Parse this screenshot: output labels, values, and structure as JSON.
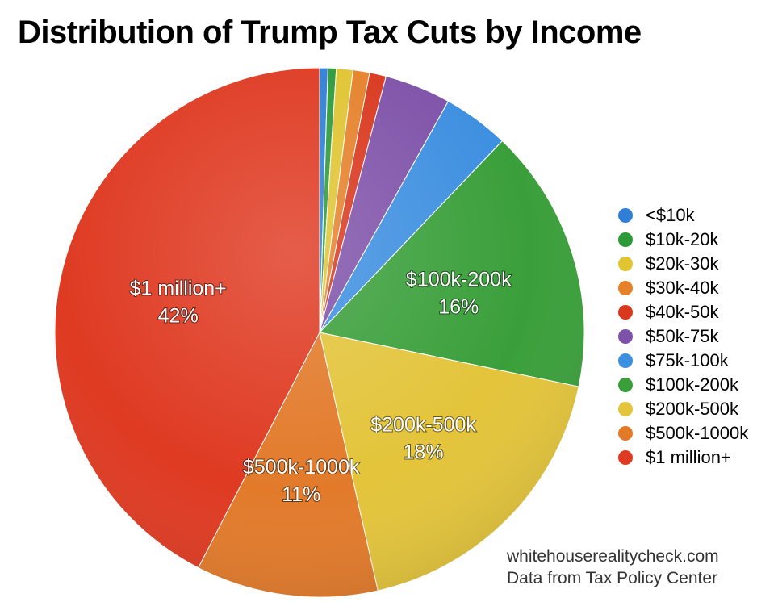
{
  "title": "Distribution of Trump Tax Cuts by Income",
  "credits": {
    "site": "whitehouserealitycheck.com",
    "source": "Data from Tax Policy Center"
  },
  "chart_data": {
    "type": "pie",
    "title": "Distribution of Trump Tax Cuts by Income",
    "legend_position": "right",
    "slices": [
      {
        "label": "<$10k",
        "value": 0.5,
        "color": "#2f7fd6",
        "show_label": false
      },
      {
        "label": "$10k-20k",
        "value": 0.5,
        "color": "#2d9a3a",
        "show_label": false
      },
      {
        "label": "$20k-30k",
        "value": 1.0,
        "color": "#e0c432",
        "show_label": false
      },
      {
        "label": "$30k-40k",
        "value": 1.0,
        "color": "#e5812b",
        "show_label": false
      },
      {
        "label": "$40k-50k",
        "value": 1.0,
        "color": "#d9381e",
        "show_label": false
      },
      {
        "label": "$50k-75k",
        "value": 4.0,
        "color": "#7f52a9",
        "show_label": false
      },
      {
        "label": "$75k-100k",
        "value": 4.0,
        "color": "#3d8fe0",
        "show_label": false
      },
      {
        "label": "$100k-200k",
        "value": 16,
        "color": "#3a9f3a",
        "show_label": true,
        "pct_label": "16%"
      },
      {
        "label": "$200k-500k",
        "value": 18,
        "color": "#e3c43a",
        "show_label": true,
        "pct_label": "18%"
      },
      {
        "label": "$500k-1000k",
        "value": 11,
        "color": "#e27a2a",
        "show_label": true,
        "pct_label": "11%"
      },
      {
        "label": "$1 million+",
        "value": 42,
        "color": "#df3a22",
        "show_label": true,
        "pct_label": "42%"
      }
    ]
  }
}
